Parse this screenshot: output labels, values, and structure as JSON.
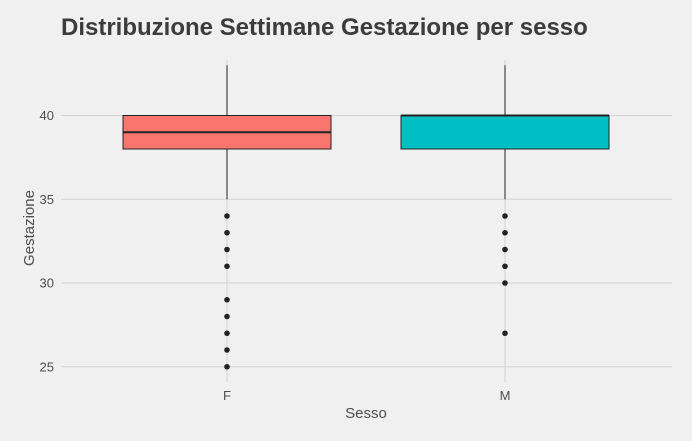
{
  "chart_data": {
    "type": "boxplot",
    "title": "Distribuzione Settimane Gestazione per sesso",
    "xlabel": "Sesso",
    "ylabel": "Gestazione",
    "categories": [
      "F",
      "M"
    ],
    "ylim": [
      24,
      43.5
    ],
    "yticks": [
      25,
      30,
      35,
      40
    ],
    "grid": true,
    "legend": "none",
    "colors": {
      "F": "#f8766d",
      "M": "#00bfc4",
      "background": "#f0f0f0",
      "grid": "#d2d2d2"
    },
    "boxes": [
      {
        "category": "F",
        "whisker_low": 35,
        "q1": 38,
        "median": 39,
        "q3": 40,
        "whisker_high": 43,
        "outliers": [
          34,
          33,
          32,
          31,
          29,
          28,
          27,
          26,
          25
        ]
      },
      {
        "category": "M",
        "whisker_low": 35,
        "q1": 38,
        "median": 40,
        "q3": 40,
        "whisker_high": 43,
        "outliers": [
          34,
          33,
          32,
          31,
          30,
          27
        ]
      }
    ]
  }
}
